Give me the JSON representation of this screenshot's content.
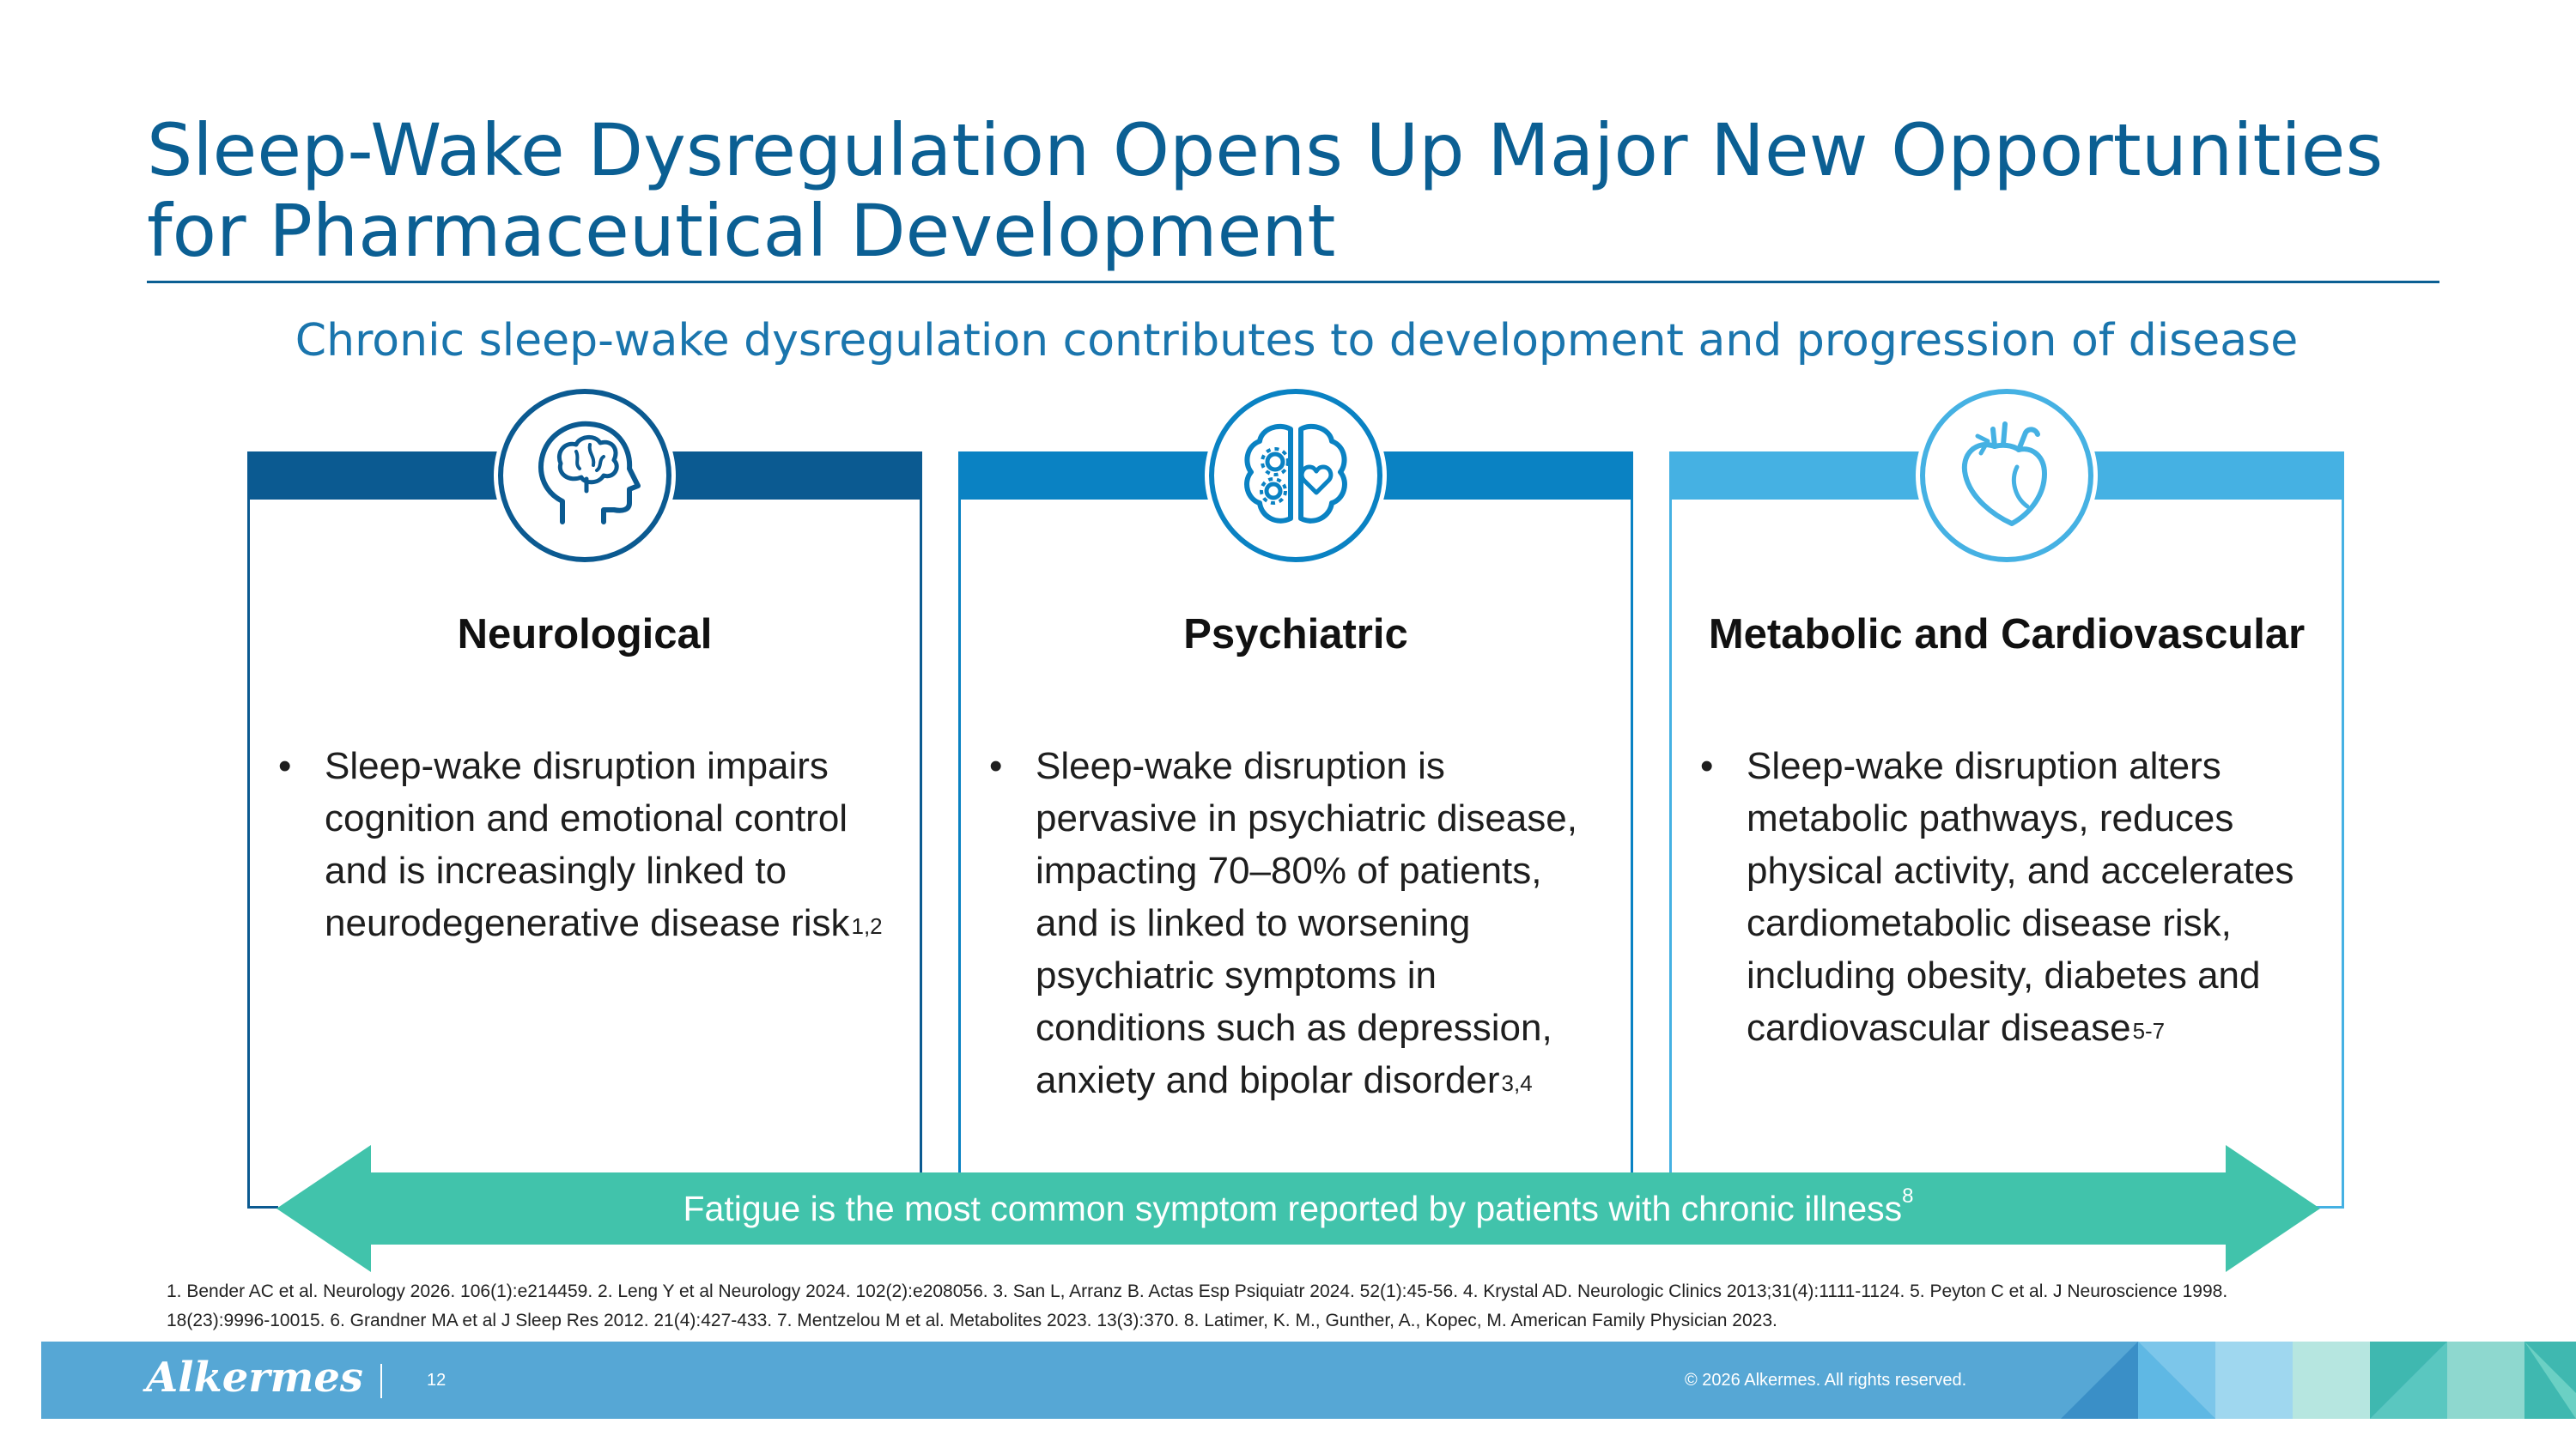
{
  "title": {
    "line1": "Sleep-Wake Dysregulation Opens Up Major New Opportunities",
    "line2": "for Pharmaceutical Development"
  },
  "subtitle": "Chronic sleep-wake dysregulation contributes to development and progression of disease",
  "colors": {
    "title": "#0b5f93",
    "card1": "#0b5a91",
    "card2": "#0a82c3",
    "card3": "#45b1e3",
    "arrow": "#41c3ab",
    "footer": "#56a7d5"
  },
  "cards": [
    {
      "icon": "brain-head-icon",
      "heading": "Neurological",
      "bullet": "Sleep‑wake disruption impairs cognition and emotional control and is increasingly linked to neurodegenerative disease risk",
      "sup": "1,2"
    },
    {
      "icon": "brain-gears-heart-icon",
      "heading": "Psychiatric",
      "bullet": "Sleep-wake disruption is pervasive in psychiatric disease, impacting 70–80% of patients, and is linked to worsening psychiatric symptoms in conditions such as depression, anxiety and bipolar disorder",
      "sup": "3,4"
    },
    {
      "icon": "heart-organ-icon",
      "heading": "Metabolic and Cardiovascular",
      "bullet": "Sleep‑wake disruption alters metabolic pathways, reduces physical activity, and accelerates cardiometabolic disease risk, including obesity, diabetes and cardiovascular disease",
      "sup": "5-7"
    }
  ],
  "arrow": {
    "text": "Fatigue is the most common symptom reported by patients with chronic illness",
    "sup": "8"
  },
  "references": {
    "line1": "1. Bender AC et al. Neurology 2026. 106(1):e214459.  2. Leng Y et al Neurology 2024. 102(2):e208056.  3. San L, Arranz B.  Actas Esp Psiquiatr 2024. 52(1):45-56.  4. Krystal AD. Neurologic Clinics 2013;31(4):1111-1124.  5. Peyton C et al. J Neuroscience 1998.",
    "line2": "18(23):9996-10015.  6. Grandner MA et al J Sleep Res 2012. 21(4):427-433.  7. Mentzelou M et al. Metabolites 2023. 13(3):370. 8. Latimer, K. M., Gunther, A., Kopec, M. American Family Physician 2023."
  },
  "footer": {
    "logo": "Alkermes",
    "page_number": "12",
    "copyright": "© 2026 Alkermes. All rights reserved."
  }
}
